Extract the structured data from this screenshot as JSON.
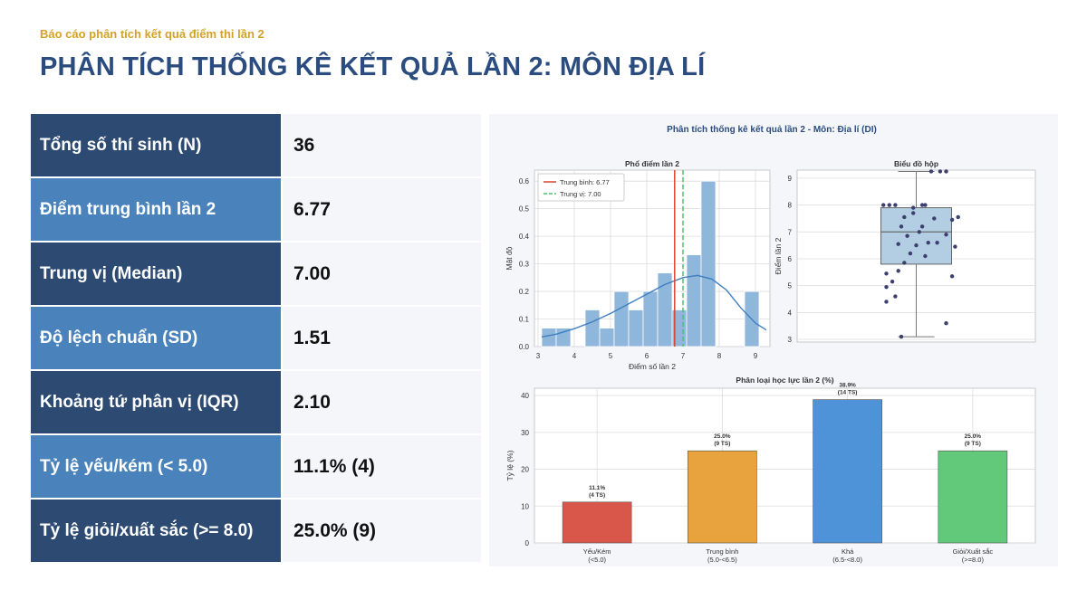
{
  "header": {
    "eyebrow": "Báo cáo phân tích kết quả điểm thi lần 2",
    "title": "PHÂN TÍCH THỐNG KÊ KẾT QUẢ LẦN 2: MÔN ĐỊA LÍ"
  },
  "stats": [
    {
      "label": "Tổng số thí sinh (N)",
      "value": "36"
    },
    {
      "label": "Điểm trung bình lần 2",
      "value": "6.77"
    },
    {
      "label": "Trung vị (Median)",
      "value": "7.00"
    },
    {
      "label": "Độ lệch chuẩn (SD)",
      "value": "1.51"
    },
    {
      "label": "Khoảng tứ phân vị (IQR)",
      "value": "2.10"
    },
    {
      "label": "Tỷ lệ yếu/kém (< 5.0)",
      "value": "11.1% (4)"
    },
    {
      "label": "Tỷ lệ giỏi/xuất sắc (>= 8.0)",
      "value": "25.0% (9)"
    }
  ],
  "figure_title": "Phân tích thống kê kết quả lần 2 - Môn: Địa lí (DI)",
  "chart_data": [
    {
      "type": "bar",
      "title": "Phổ điểm lần 2",
      "xlabel": "Điểm số lần 2",
      "ylabel": "Mật độ",
      "xlim": [
        2.9,
        9.4
      ],
      "ylim": [
        0,
        0.64
      ],
      "xticks": [
        3,
        4,
        5,
        6,
        7,
        8,
        9
      ],
      "yticks": [
        0.0,
        0.1,
        0.2,
        0.3,
        0.4,
        0.5,
        0.6
      ],
      "bins": [
        {
          "x0": 3.1,
          "x1": 3.5,
          "h": 0.067
        },
        {
          "x0": 3.5,
          "x1": 3.9,
          "h": 0.067
        },
        {
          "x0": 4.3,
          "x1": 4.7,
          "h": 0.133
        },
        {
          "x0": 4.7,
          "x1": 5.1,
          "h": 0.067
        },
        {
          "x0": 5.1,
          "x1": 5.5,
          "h": 0.2
        },
        {
          "x0": 5.5,
          "x1": 5.9,
          "h": 0.133
        },
        {
          "x0": 5.9,
          "x1": 6.3,
          "h": 0.2
        },
        {
          "x0": 6.3,
          "x1": 6.7,
          "h": 0.267
        },
        {
          "x0": 6.7,
          "x1": 7.1,
          "h": 0.133
        },
        {
          "x0": 7.1,
          "x1": 7.5,
          "h": 0.333
        },
        {
          "x0": 7.5,
          "x1": 7.9,
          "h": 0.6
        },
        {
          "x0": 8.7,
          "x1": 9.1,
          "h": 0.2
        }
      ],
      "kde": [
        [
          3.1,
          0.035
        ],
        [
          3.5,
          0.045
        ],
        [
          4.0,
          0.065
        ],
        [
          4.5,
          0.09
        ],
        [
          5.0,
          0.12
        ],
        [
          5.5,
          0.155
        ],
        [
          6.0,
          0.19
        ],
        [
          6.5,
          0.225
        ],
        [
          7.0,
          0.25
        ],
        [
          7.4,
          0.258
        ],
        [
          7.8,
          0.245
        ],
        [
          8.2,
          0.205
        ],
        [
          8.6,
          0.14
        ],
        [
          9.0,
          0.085
        ],
        [
          9.3,
          0.06
        ]
      ],
      "mean": 6.77,
      "median": 7.0,
      "legend": {
        "mean": "Trung bình: 6.77",
        "median": "Trung vị: 7.00"
      }
    },
    {
      "type": "box",
      "title": "Biểu đồ hộp",
      "ylabel": "Điểm lần 2",
      "ylim": [
        2.9,
        9.3
      ],
      "yticks": [
        3,
        4,
        5,
        6,
        7,
        8,
        9
      ],
      "q1": 5.8,
      "median": 7.0,
      "q3": 7.9,
      "whisker_low": 3.1,
      "whisker_high": 9.25,
      "points": [
        [
          -0.55,
          8.0
        ],
        [
          -0.45,
          8.0
        ],
        [
          -0.35,
          8.0
        ],
        [
          0.15,
          8.0
        ],
        [
          -0.05,
          7.7
        ],
        [
          0.3,
          7.5
        ],
        [
          -0.25,
          7.2
        ],
        [
          0.05,
          7.0
        ],
        [
          0.1,
          7.2
        ],
        [
          -0.15,
          6.85
        ],
        [
          0.2,
          6.6
        ],
        [
          -0.3,
          6.55
        ],
        [
          -0.5,
          5.45
        ],
        [
          -0.4,
          5.15
        ],
        [
          -0.5,
          4.95
        ],
        [
          -0.5,
          4.4
        ],
        [
          -0.3,
          5.55
        ],
        [
          -0.2,
          5.85
        ],
        [
          -0.35,
          4.6
        ],
        [
          0.35,
          6.6
        ],
        [
          0.5,
          6.9
        ],
        [
          0.6,
          7.45
        ],
        [
          0.7,
          7.55
        ],
        [
          0.65,
          6.45
        ],
        [
          0.6,
          5.35
        ],
        [
          0.5,
          3.6
        ],
        [
          -0.25,
          3.1
        ],
        [
          0.25,
          9.25
        ],
        [
          0.4,
          9.25
        ],
        [
          0.5,
          9.25
        ],
        [
          -0.1,
          6.2
        ],
        [
          0.0,
          6.5
        ],
        [
          0.15,
          6.1
        ],
        [
          -0.05,
          7.9
        ],
        [
          0.1,
          8.0
        ],
        [
          -0.2,
          7.55
        ]
      ]
    },
    {
      "type": "bar",
      "title": "Phân loại học lực lần 2 (%)",
      "ylabel": "Tỷ lệ (%)",
      "ylim": [
        0,
        42
      ],
      "yticks": [
        0,
        10,
        20,
        30,
        40
      ],
      "categories": [
        {
          "name": "Yếu/Kém",
          "range": "(<5.0)"
        },
        {
          "name": "Trung bình",
          "range": "(5.0-<6.5)"
        },
        {
          "name": "Khá",
          "range": "(6.5-<8.0)"
        },
        {
          "name": "Giỏi/Xuất sắc",
          "range": "(>=8.0)"
        }
      ],
      "values": [
        11.1,
        25.0,
        38.9,
        25.0
      ],
      "value_labels": [
        "11.1%",
        "25.0%",
        "38.9%",
        "25.0%"
      ],
      "count_labels": [
        "(4 TS)",
        "(9 TS)",
        "(14 TS)",
        "(9 TS)"
      ],
      "colors": [
        "#d9574a",
        "#e8a23e",
        "#4e93d8",
        "#63c97a"
      ]
    }
  ]
}
